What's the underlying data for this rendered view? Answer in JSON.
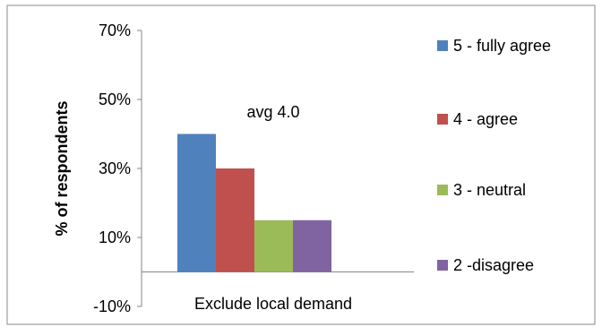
{
  "chart_data": {
    "type": "bar",
    "categories": [
      "Exclude local demand"
    ],
    "series": [
      {
        "name": "5 - fully agree",
        "values": [
          40
        ],
        "color": "#4f81bd"
      },
      {
        "name": "4 - agree",
        "values": [
          30
        ],
        "color": "#c0504d"
      },
      {
        "name": "3 - neutral",
        "values": [
          15
        ],
        "color": "#9bbb59"
      },
      {
        "name": "2  -disagree",
        "values": [
          15
        ],
        "color": "#8064a2"
      }
    ],
    "title": "",
    "xlabel": "",
    "ylabel": "% of respondents",
    "ylim": [
      -10,
      70
    ],
    "yticks": [
      -10,
      10,
      30,
      50,
      70
    ],
    "ytick_labels": [
      "-10%",
      "10%",
      "30%",
      "50%",
      "70%"
    ],
    "grid": false,
    "legend_position": "right",
    "annotation": "avg 4.0"
  }
}
